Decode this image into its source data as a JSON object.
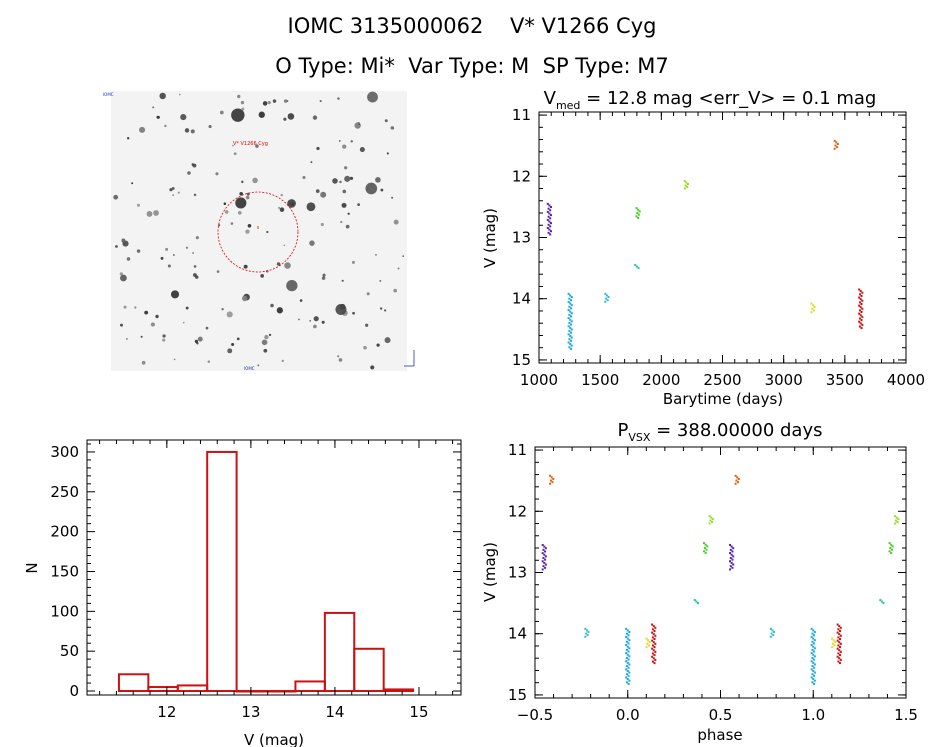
{
  "header": {
    "line1": "IOMC 3135000062    V* V1266 Cyg",
    "line2": "O Type: Mi*  Var Type: M  SP Type: M7"
  },
  "finder": {
    "corner_tl": "IOMC",
    "target_label": "V* V1266 Cyg",
    "bottom_label": "IOMC",
    "circle_color": "#dd0000"
  },
  "chart_data": [
    {
      "id": "lightcurve",
      "type": "scatter",
      "title": "V_med = 12.8 mag <err_V> = 0.1 mag",
      "title_main": "V",
      "title_sub": "med",
      "title_rest": " = 12.8 mag <err_V> = 0.1 mag",
      "xlabel": "Barytime (days)",
      "ylabel": "V (mag)",
      "xlim": [
        1000,
        4000
      ],
      "ylim": [
        15.05,
        10.95
      ],
      "xticks": [
        1000,
        1500,
        2000,
        2500,
        3000,
        3500,
        4000
      ],
      "yticks": [
        11,
        12,
        13,
        14,
        15
      ],
      "series": [
        {
          "color": "#5522aa",
          "x": 1085,
          "ymin": 12.45,
          "ymax": 12.95
        },
        {
          "color": "#1aa8e0",
          "x": 1255,
          "ymin": 13.92,
          "ymax": 14.82
        },
        {
          "color": "#33bbcc",
          "x": 1555,
          "ymin": 13.92,
          "ymax": 14.05
        },
        {
          "color": "#22cc88",
          "x": 1800,
          "ymin": 13.45,
          "ymax": 13.5
        },
        {
          "color": "#44cc22",
          "x": 1810,
          "ymin": 12.52,
          "ymax": 12.68
        },
        {
          "color": "#99dd22",
          "x": 2205,
          "ymin": 12.08,
          "ymax": 12.2
        },
        {
          "color": "#dddd22",
          "x": 3240,
          "ymin": 14.08,
          "ymax": 14.22
        },
        {
          "color": "#e06010",
          "x": 3430,
          "ymin": 11.42,
          "ymax": 11.55
        },
        {
          "color": "#cc1111",
          "x": 3630,
          "ymin": 13.85,
          "ymax": 14.48
        }
      ]
    },
    {
      "id": "histogram",
      "type": "bar",
      "title": "",
      "xlabel": "V (mag)",
      "ylabel": "N",
      "xlim": [
        11.05,
        15.5
      ],
      "ylim": [
        -5,
        315
      ],
      "xticks": [
        12,
        13,
        14,
        15
      ],
      "yticks": [
        0,
        50,
        100,
        150,
        200,
        250,
        300
      ],
      "color": "#cc1111",
      "bins": [
        {
          "x0": 11.43,
          "x1": 11.78,
          "value": 21
        },
        {
          "x0": 11.78,
          "x1": 12.13,
          "value": 5
        },
        {
          "x0": 12.13,
          "x1": 12.48,
          "value": 7
        },
        {
          "x0": 12.48,
          "x1": 12.83,
          "value": 300
        },
        {
          "x0": 12.83,
          "x1": 13.18,
          "value": 0
        },
        {
          "x0": 13.18,
          "x1": 13.53,
          "value": 0
        },
        {
          "x0": 13.53,
          "x1": 13.88,
          "value": 12
        },
        {
          "x0": 13.88,
          "x1": 14.23,
          "value": 98
        },
        {
          "x0": 14.23,
          "x1": 14.58,
          "value": 53
        },
        {
          "x0": 14.58,
          "x1": 14.93,
          "value": 2
        }
      ]
    },
    {
      "id": "phased",
      "type": "scatter",
      "title": "P_VSX = 388.00000 days",
      "title_main": "P",
      "title_sub": "VSX",
      "title_rest": " = 388.00000 days",
      "xlabel": "phase",
      "ylabel": "V (mag)",
      "xlim": [
        -0.5,
        1.5
      ],
      "ylim": [
        15.05,
        10.95
      ],
      "xticks": [
        -0.5,
        0.0,
        0.5,
        1.0,
        1.5
      ],
      "xticklabels": [
        "−0.5",
        "0.0",
        "0.5",
        "1.0",
        "1.5"
      ],
      "yticks": [
        11,
        12,
        13,
        14,
        15
      ],
      "series": [
        {
          "color": "#5522aa",
          "x": -0.45,
          "ymin": 12.55,
          "ymax": 12.95
        },
        {
          "color": "#5522aa",
          "x": 0.56,
          "ymin": 12.55,
          "ymax": 12.95
        },
        {
          "color": "#e06010",
          "x": -0.41,
          "ymin": 11.42,
          "ymax": 11.55
        },
        {
          "color": "#e06010",
          "x": 0.59,
          "ymin": 11.42,
          "ymax": 11.55
        },
        {
          "color": "#33bbcc",
          "x": -0.22,
          "ymin": 13.92,
          "ymax": 14.05
        },
        {
          "color": "#33bbcc",
          "x": 0.78,
          "ymin": 13.92,
          "ymax": 14.05
        },
        {
          "color": "#1aa8e0",
          "x": 0.0,
          "ymin": 13.92,
          "ymax": 14.82
        },
        {
          "color": "#1aa8e0",
          "x": 1.0,
          "ymin": 13.92,
          "ymax": 14.82
        },
        {
          "color": "#dddd22",
          "x": 0.11,
          "ymin": 14.08,
          "ymax": 14.22
        },
        {
          "color": "#dddd22",
          "x": 1.11,
          "ymin": 14.08,
          "ymax": 14.22
        },
        {
          "color": "#cc1111",
          "x": 0.14,
          "ymin": 13.85,
          "ymax": 14.48
        },
        {
          "color": "#cc1111",
          "x": 1.14,
          "ymin": 13.85,
          "ymax": 14.48
        },
        {
          "color": "#22cc88",
          "x": 0.37,
          "ymin": 13.45,
          "ymax": 13.5
        },
        {
          "color": "#22cc88",
          "x": 1.37,
          "ymin": 13.45,
          "ymax": 13.5
        },
        {
          "color": "#44cc22",
          "x": 0.42,
          "ymin": 12.52,
          "ymax": 12.68
        },
        {
          "color": "#44cc22",
          "x": 1.42,
          "ymin": 12.52,
          "ymax": 12.68
        },
        {
          "color": "#99dd22",
          "x": 0.45,
          "ymin": 12.08,
          "ymax": 12.2
        },
        {
          "color": "#99dd22",
          "x": 1.45,
          "ymin": 12.08,
          "ymax": 12.2
        }
      ]
    }
  ]
}
